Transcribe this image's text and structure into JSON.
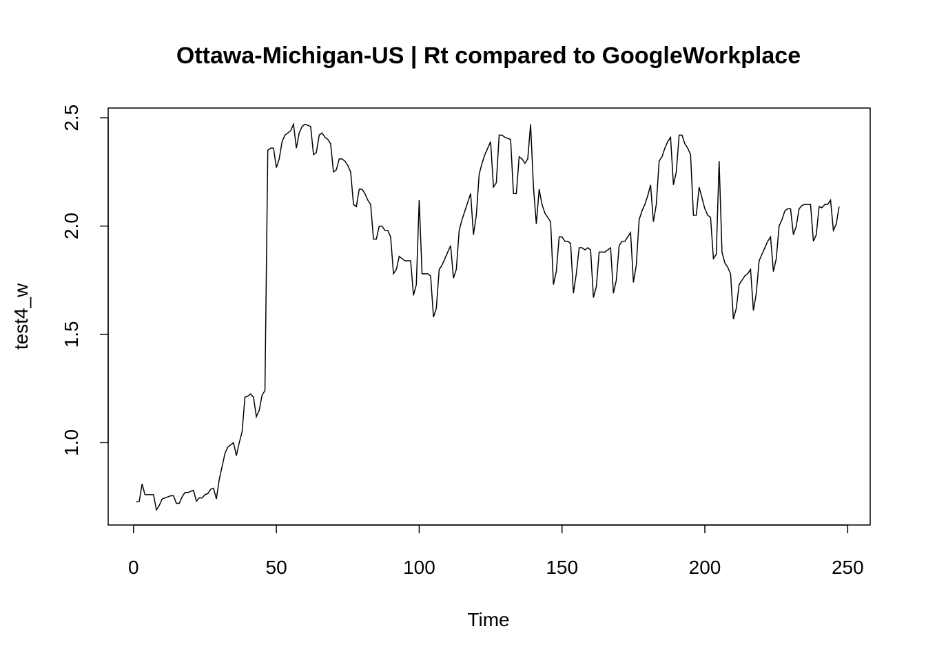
{
  "chart_data": {
    "type": "line",
    "title": "Ottawa-Michigan-US | Rt compared to GoogleWorkplace",
    "x_label": "Time",
    "y_label": "test4_w",
    "x": [
      1,
      2,
      3,
      4,
      5,
      6,
      7,
      8,
      9,
      10,
      11,
      12,
      13,
      14,
      15,
      16,
      17,
      18,
      19,
      20,
      21,
      22,
      23,
      24,
      25,
      26,
      27,
      28,
      29,
      30,
      31,
      32,
      33,
      34,
      35,
      36,
      37,
      38,
      39,
      40,
      41,
      42,
      43,
      44,
      45,
      46,
      47,
      48,
      49,
      50,
      51,
      52,
      53,
      54,
      55,
      56,
      57,
      58,
      59,
      60,
      61,
      62,
      63,
      64,
      65,
      66,
      67,
      68,
      69,
      70,
      71,
      72,
      73,
      74,
      75,
      76,
      77,
      78,
      79,
      80,
      81,
      82,
      83,
      84,
      85,
      86,
      87,
      88,
      89,
      90,
      91,
      92,
      93,
      94,
      95,
      96,
      97,
      98,
      99,
      100,
      101,
      102,
      103,
      104,
      105,
      106,
      107,
      108,
      109,
      110,
      111,
      112,
      113,
      114,
      115,
      116,
      117,
      118,
      119,
      120,
      121,
      122,
      123,
      124,
      125,
      126,
      127,
      128,
      129,
      130,
      131,
      132,
      133,
      134,
      135,
      136,
      137,
      138,
      139,
      140,
      141,
      142,
      143,
      144,
      145,
      146,
      147,
      148,
      149,
      150,
      151,
      152,
      153,
      154,
      155,
      156,
      157,
      158,
      159,
      160,
      161,
      162,
      163,
      164,
      165,
      166,
      167,
      168,
      169,
      170,
      171,
      172,
      173,
      174,
      175,
      176,
      177,
      178,
      179,
      180,
      181,
      182,
      183,
      184,
      185,
      186,
      187,
      188,
      189,
      190,
      191,
      192,
      193,
      194,
      195,
      196,
      197,
      198,
      199,
      200,
      201,
      202,
      203,
      204,
      205,
      206,
      207,
      208,
      209,
      210,
      211,
      212,
      213,
      214,
      215,
      216,
      217,
      218,
      219,
      220,
      221,
      222,
      223,
      224,
      225,
      226,
      227,
      228,
      229,
      230,
      231,
      232,
      233,
      234,
      235,
      236,
      237,
      238,
      239,
      240,
      241,
      242,
      243,
      244,
      245,
      246,
      247
    ],
    "series": [
      {
        "name": "test4_w",
        "color": "#000000",
        "values": [
          0.726,
          0.73,
          0.81,
          0.76,
          0.76,
          0.76,
          0.76,
          0.69,
          0.71,
          0.74,
          0.745,
          0.75,
          0.755,
          0.755,
          0.72,
          0.72,
          0.75,
          0.77,
          0.77,
          0.775,
          0.78,
          0.73,
          0.745,
          0.745,
          0.76,
          0.765,
          0.785,
          0.79,
          0.74,
          0.83,
          0.89,
          0.95,
          0.98,
          0.99,
          1.0,
          0.94,
          1.0,
          1.05,
          1.21,
          1.215,
          1.225,
          1.21,
          1.12,
          1.15,
          1.22,
          1.24,
          2.35,
          2.36,
          2.36,
          2.27,
          2.31,
          2.39,
          2.42,
          2.43,
          2.44,
          2.47,
          2.36,
          2.43,
          2.46,
          2.47,
          2.465,
          2.46,
          2.33,
          2.34,
          2.42,
          2.43,
          2.41,
          2.4,
          2.38,
          2.25,
          2.26,
          2.31,
          2.31,
          2.3,
          2.28,
          2.25,
          2.1,
          2.09,
          2.17,
          2.17,
          2.15,
          2.12,
          2.1,
          1.94,
          1.94,
          2.0,
          2.0,
          1.98,
          1.98,
          1.95,
          1.78,
          1.8,
          1.86,
          1.85,
          1.84,
          1.84,
          1.84,
          1.68,
          1.73,
          2.12,
          1.78,
          1.78,
          1.78,
          1.77,
          1.58,
          1.62,
          1.8,
          1.82,
          1.85,
          1.88,
          1.91,
          1.76,
          1.8,
          1.98,
          2.03,
          2.07,
          2.11,
          2.15,
          1.96,
          2.05,
          2.24,
          2.29,
          2.33,
          2.36,
          2.39,
          2.18,
          2.2,
          2.42,
          2.42,
          2.41,
          2.405,
          2.4,
          2.15,
          2.15,
          2.32,
          2.31,
          2.29,
          2.31,
          2.47,
          2.18,
          2.01,
          2.17,
          2.1,
          2.06,
          2.04,
          2.02,
          1.73,
          1.79,
          1.95,
          1.95,
          1.93,
          1.93,
          1.92,
          1.69,
          1.78,
          1.9,
          1.9,
          1.89,
          1.9,
          1.89,
          1.67,
          1.72,
          1.88,
          1.88,
          1.88,
          1.89,
          1.9,
          1.69,
          1.75,
          1.91,
          1.93,
          1.93,
          1.95,
          1.97,
          1.74,
          1.82,
          2.03,
          2.07,
          2.1,
          2.14,
          2.19,
          2.02,
          2.1,
          2.3,
          2.32,
          2.36,
          2.39,
          2.41,
          2.19,
          2.25,
          2.42,
          2.42,
          2.38,
          2.36,
          2.33,
          2.05,
          2.05,
          2.18,
          2.13,
          2.08,
          2.05,
          2.04,
          1.85,
          1.87,
          2.3,
          1.88,
          1.83,
          1.81,
          1.78,
          1.57,
          1.62,
          1.73,
          1.75,
          1.77,
          1.78,
          1.8,
          1.61,
          1.69,
          1.84,
          1.87,
          1.9,
          1.93,
          1.95,
          1.79,
          1.85,
          2.0,
          2.03,
          2.07,
          2.08,
          2.08,
          1.96,
          2.0,
          2.08,
          2.095,
          2.1,
          2.1,
          2.1,
          1.93,
          1.96,
          2.09,
          2.085,
          2.1,
          2.1,
          2.12,
          1.98,
          2.01,
          2.09
        ]
      }
    ],
    "xlim": [
      -8.88,
      257.88
    ],
    "xticks": [
      0,
      50,
      100,
      150,
      200,
      250
    ],
    "ylim": [
      0.62,
      2.545
    ],
    "yticks": [
      {
        "value": 1,
        "label": "1.0"
      },
      1.5,
      {
        "value": 2,
        "label": "2.0"
      },
      2.5
    ]
  }
}
